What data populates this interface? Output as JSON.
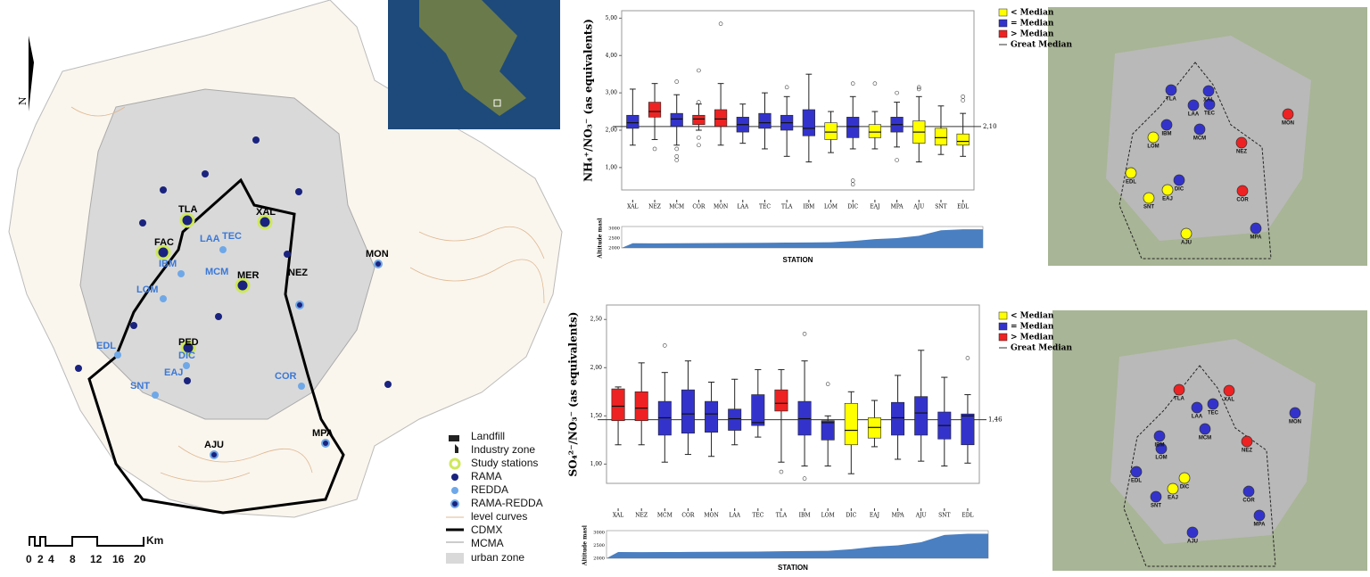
{
  "map": {
    "north": "N",
    "stations": [
      "TLA",
      "XAL",
      "FAC",
      "LAA",
      "TEC",
      "IBM",
      "MCM",
      "MER",
      "LOM",
      "NEZ",
      "MON",
      "PED",
      "DIC",
      "EDL",
      "EAJ",
      "SNT",
      "COR",
      "AJU",
      "MPA"
    ],
    "legend": [
      "Landfill",
      "Industry zone",
      "Study stations",
      "RAMA",
      "REDDA",
      "RAMA-REDDA",
      "level curves",
      "CDMX",
      "MCMA",
      "urban zone"
    ],
    "scale_unit": "Km",
    "scale_ticks": [
      "0",
      "2",
      "4",
      "8",
      "12",
      "16",
      "20"
    ]
  },
  "legend": [
    {
      "name": "< Median",
      "color": "#ffff00"
    },
    {
      "name": "= Median",
      "color": "#3333cc"
    },
    {
      "name": "> Median",
      "color": "#ee2222"
    },
    {
      "name": "Great Median",
      "color": "#333333"
    }
  ],
  "chart_data": [
    {
      "type": "box",
      "y_label": "NH₄⁺/NO₃⁻ (as equivalents)",
      "x_label": "STATION",
      "categories": [
        "XAL",
        "NEZ",
        "MCM",
        "COR",
        "MON",
        "LAA",
        "TEC",
        "TLA",
        "IBM",
        "LOM",
        "DIC",
        "EAJ",
        "MPA",
        "AJU",
        "SNT",
        "EDL"
      ],
      "colors": [
        "#3333cc",
        "#ee2222",
        "#3333cc",
        "#ee2222",
        "#ee2222",
        "#3333cc",
        "#3333cc",
        "#3333cc",
        "#3333cc",
        "#ffff00",
        "#3333cc",
        "#ffff00",
        "#3333cc",
        "#ffff00",
        "#ffff00",
        "#ffff00"
      ],
      "min": [
        1.6,
        1.75,
        1.6,
        2.0,
        1.6,
        1.65,
        1.5,
        1.3,
        1.15,
        1.4,
        1.5,
        1.5,
        1.55,
        1.15,
        1.35,
        1.3
      ],
      "q1": [
        2.05,
        2.35,
        2.1,
        2.15,
        2.1,
        1.95,
        2.05,
        2.0,
        1.85,
        1.75,
        1.8,
        1.8,
        1.95,
        1.65,
        1.6,
        1.6
      ],
      "median": [
        2.2,
        2.5,
        2.3,
        2.3,
        2.3,
        2.15,
        2.2,
        2.2,
        2.05,
        1.95,
        2.1,
        1.95,
        2.15,
        1.95,
        1.8,
        1.7
      ],
      "q3": [
        2.4,
        2.75,
        2.45,
        2.4,
        2.55,
        2.35,
        2.45,
        2.4,
        2.55,
        2.2,
        2.35,
        2.15,
        2.35,
        2.25,
        2.05,
        1.9
      ],
      "max": [
        3.1,
        3.25,
        2.95,
        2.7,
        3.25,
        2.7,
        3.0,
        2.9,
        3.5,
        2.5,
        2.9,
        2.5,
        2.75,
        2.9,
        2.65,
        2.45
      ],
      "outliers": [
        [],
        [
          1.5
        ],
        [
          3.3,
          1.5,
          1.3,
          1.2
        ],
        [
          3.6,
          2.75,
          1.8,
          1.6
        ],
        [
          4.85
        ],
        [],
        [],
        [
          3.15
        ],
        [],
        [],
        [
          3.25,
          0.65,
          0.55
        ],
        [
          3.25
        ],
        [
          3.0,
          1.2
        ],
        [
          3.15,
          3.1
        ],
        [],
        [
          2.9,
          2.8
        ]
      ],
      "reference": {
        "value": 2.1,
        "label": "2,10"
      },
      "ylim": [
        0.4,
        5.2
      ],
      "yticks": [
        {
          "value": 1,
          "label": "1,00"
        },
        {
          "value": 2,
          "label": "2,00"
        },
        {
          "value": 3,
          "label": "3,00"
        },
        {
          "value": 4,
          "label": "4,00"
        },
        {
          "value": 5,
          "label": "5,00"
        }
      ],
      "altitude": {
        "label": "Altitude masl",
        "values": [
          2240,
          2235,
          2240,
          2245,
          2250,
          2255,
          2260,
          2270,
          2280,
          2290,
          2350,
          2450,
          2500,
          2620,
          2900,
          2950
        ],
        "ylim": [
          2000,
          3000
        ],
        "yticks": [
          2000,
          2500,
          3000
        ]
      }
    },
    {
      "type": "box",
      "y_label": "SO₄²⁻/NO₃⁻ (as equivalents)",
      "x_label": "STATION",
      "categories": [
        "XAL",
        "NEZ",
        "MCM",
        "COR",
        "MON",
        "LAA",
        "TEC",
        "TLA",
        "IBM",
        "LOM",
        "DIC",
        "EAJ",
        "MPA",
        "AJU",
        "SNT",
        "EDL"
      ],
      "colors": [
        "#ee2222",
        "#ee2222",
        "#3333cc",
        "#3333cc",
        "#3333cc",
        "#3333cc",
        "#3333cc",
        "#ee2222",
        "#3333cc",
        "#3333cc",
        "#ffff00",
        "#ffff00",
        "#3333cc",
        "#3333cc",
        "#3333cc",
        "#3333cc"
      ],
      "min": [
        1.2,
        1.2,
        1.02,
        1.1,
        1.08,
        1.2,
        1.28,
        1.02,
        0.98,
        0.98,
        0.9,
        1.18,
        1.05,
        1.03,
        0.98,
        1.01
      ],
      "q1": [
        1.45,
        1.45,
        1.3,
        1.32,
        1.33,
        1.35,
        1.4,
        1.55,
        1.3,
        1.25,
        1.2,
        1.27,
        1.3,
        1.3,
        1.26,
        1.2
      ],
      "median": [
        1.6,
        1.58,
        1.48,
        1.52,
        1.52,
        1.47,
        1.43,
        1.63,
        1.47,
        1.43,
        1.35,
        1.38,
        1.48,
        1.53,
        1.4,
        1.5
      ],
      "q3": [
        1.78,
        1.75,
        1.65,
        1.77,
        1.65,
        1.57,
        1.72,
        1.77,
        1.65,
        1.45,
        1.63,
        1.48,
        1.64,
        1.7,
        1.54,
        1.52
      ],
      "max": [
        1.8,
        2.05,
        1.95,
        2.07,
        1.85,
        1.88,
        1.98,
        1.98,
        2.07,
        1.5,
        1.75,
        1.66,
        1.92,
        2.18,
        1.9,
        1.72
      ],
      "outliers": [
        [],
        [],
        [
          2.23
        ],
        [],
        [],
        [],
        [],
        [
          0.92
        ],
        [
          2.35,
          0.85
        ],
        [
          1.83
        ],
        [],
        [],
        [],
        [],
        [],
        [
          2.1
        ]
      ],
      "reference": {
        "value": 1.46,
        "label": "1,46"
      },
      "ylim": [
        0.8,
        2.65
      ],
      "yticks": [
        {
          "value": 1,
          "label": "1,00"
        },
        {
          "value": 1.5,
          "label": "1,50"
        },
        {
          "value": 2,
          "label": "2,00"
        },
        {
          "value": 2.5,
          "label": "2,50"
        }
      ],
      "altitude": {
        "label": "Altitude masl",
        "values": [
          2240,
          2235,
          2240,
          2245,
          2250,
          2255,
          2260,
          2270,
          2280,
          2290,
          2350,
          2450,
          2500,
          2620,
          2900,
          2950
        ],
        "ylim": [
          2000,
          3000
        ],
        "yticks": [
          2000,
          2500,
          3000
        ]
      }
    }
  ]
}
